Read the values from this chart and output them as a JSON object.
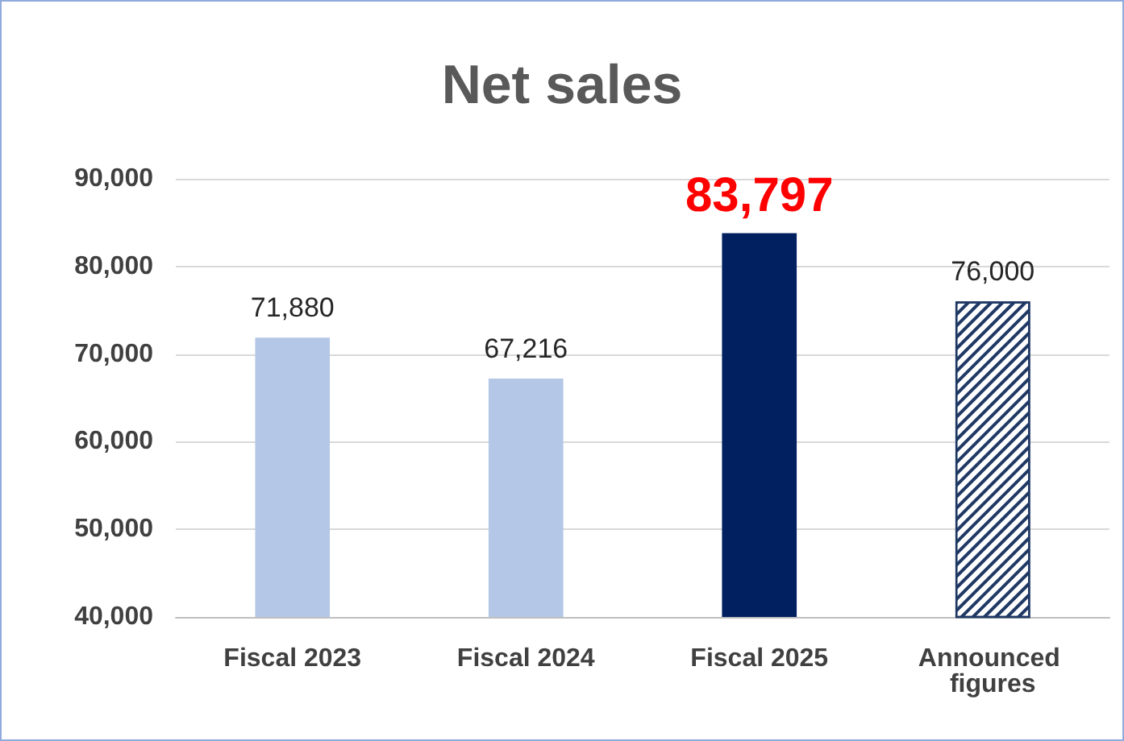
{
  "chart_data": {
    "type": "bar",
    "title": "Net sales",
    "categories": [
      "Fiscal 2023",
      "Fiscal 2024",
      "Fiscal 2025",
      "Announced figures"
    ],
    "values": [
      71880,
      67216,
      83797,
      76000
    ],
    "colors": [
      "#b4c7e7",
      "#b4c7e7",
      "#002060",
      "#ffffff"
    ],
    "value_labels": [
      "71,880",
      "67,216",
      "83,797",
      "76,000"
    ],
    "ylim": [
      40000,
      90000
    ],
    "yticks": [
      {
        "value": 40000,
        "label": "40,000"
      },
      {
        "value": 50000,
        "label": "50,000"
      },
      {
        "value": 60000,
        "label": "60,000"
      },
      {
        "value": 70000,
        "label": "70,000"
      },
      {
        "value": 80000,
        "label": "80,000"
      },
      {
        "value": 90000,
        "label": "90,000"
      }
    ],
    "grid": "y"
  }
}
